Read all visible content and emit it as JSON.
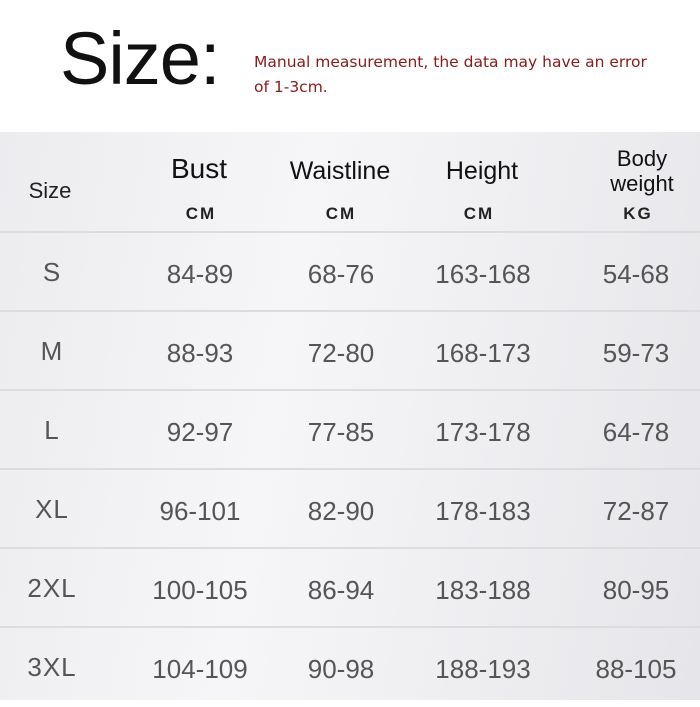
{
  "title": "Size:",
  "note": "Manual measurement, the data may have an error of 1-3cm.",
  "table": {
    "columns": [
      {
        "name": "Size",
        "unit": ""
      },
      {
        "name": "Bust",
        "unit": "CM"
      },
      {
        "name": "Waistline",
        "unit": "CM"
      },
      {
        "name": "Height",
        "unit": "CM"
      },
      {
        "name": "Body weight",
        "unit": "KG"
      }
    ],
    "rows": [
      [
        "S",
        "84-89",
        "68-76",
        "163-168",
        "54-68"
      ],
      [
        "M",
        "88-93",
        "72-80",
        "168-173",
        "59-73"
      ],
      [
        "L",
        "92-97",
        "77-85",
        "173-178",
        "64-78"
      ],
      [
        "XL",
        "96-101",
        "82-90",
        "178-183",
        "72-87"
      ],
      [
        "2XL",
        "100-105",
        "86-94",
        "183-188",
        "80-95"
      ],
      [
        "3XL",
        "104-109",
        "90-98",
        "188-193",
        "88-105"
      ]
    ]
  },
  "colors": {
    "note": "#8b1a1a"
  }
}
